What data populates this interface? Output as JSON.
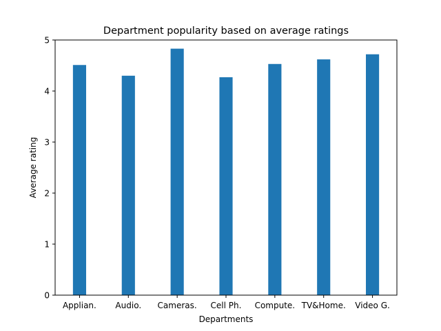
{
  "chart_data": {
    "type": "bar",
    "title": "Department popularity based on average ratings",
    "xlabel": "Departments",
    "ylabel": "Average rating",
    "categories": [
      "Applian.",
      "Audio.",
      "Cameras.",
      "Cell Ph.",
      "Compute.",
      "TV&Home.",
      "Video G."
    ],
    "values": [
      4.51,
      4.3,
      4.83,
      4.27,
      4.53,
      4.62,
      4.72
    ],
    "ylim": [
      0,
      5
    ],
    "yticks": [
      0,
      1,
      2,
      3,
      4,
      5
    ],
    "grid": false,
    "legend": "none",
    "bar_color": "#1f77b4"
  }
}
